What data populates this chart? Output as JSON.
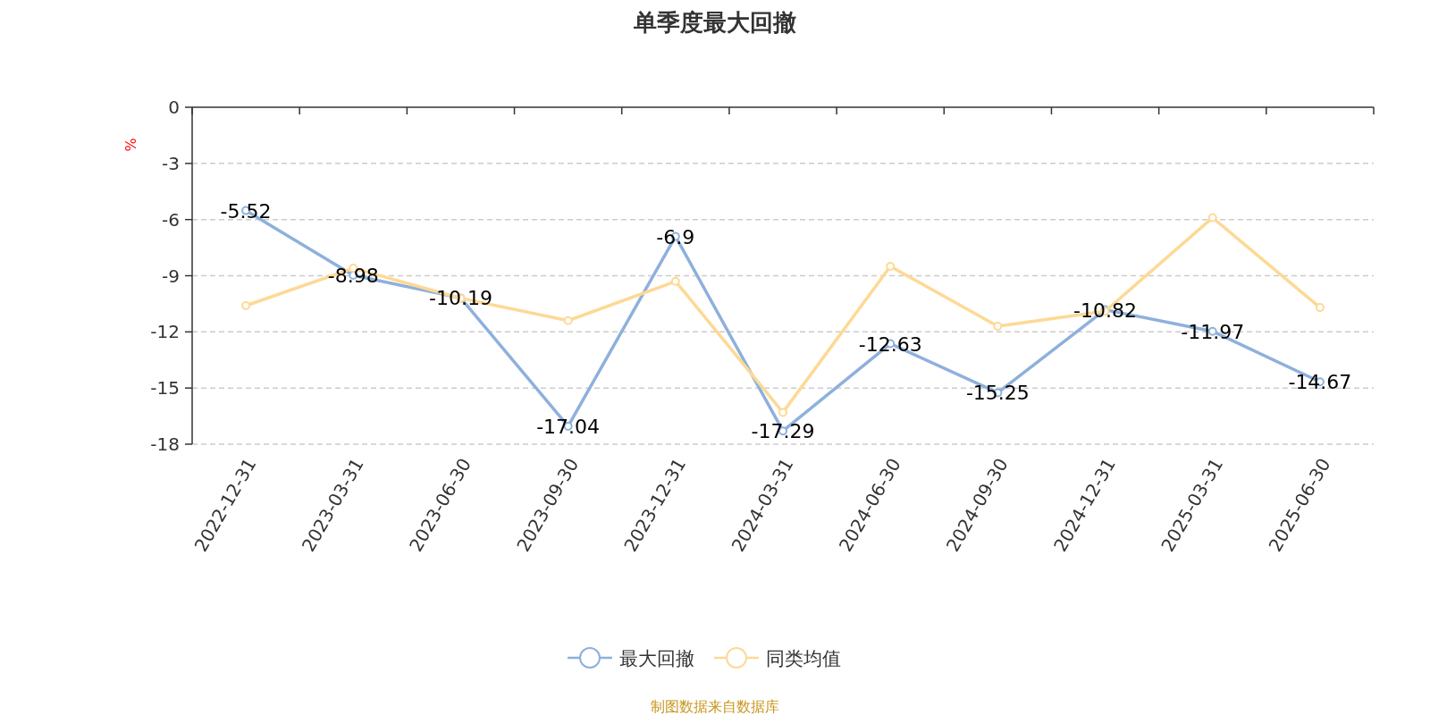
{
  "chart_data": {
    "type": "line",
    "title": "单季度最大回撤",
    "ylabel": "%",
    "categories": [
      "2022-12-31",
      "2023-03-31",
      "2023-06-30",
      "2023-09-30",
      "2023-12-31",
      "2024-03-31",
      "2024-06-30",
      "2024-09-30",
      "2024-12-31",
      "2025-03-31",
      "2025-06-30"
    ],
    "series": [
      {
        "name": "最大回撤",
        "color": "#8eb0dc",
        "values": [
          -5.52,
          -8.98,
          -10.19,
          -17.04,
          -6.9,
          -17.29,
          -12.63,
          -15.25,
          -10.82,
          -11.97,
          -14.67
        ],
        "value_labels": [
          "-5.52",
          "-8.98",
          "-10.19",
          "-17.04",
          "-6.9",
          "-17.29",
          "-12.63",
          "-15.25",
          "-10.82",
          "-11.97",
          "-14.67"
        ]
      },
      {
        "name": "同类均值",
        "color": "#fdd995",
        "values": [
          -10.6,
          -8.6,
          -10.2,
          -11.4,
          -9.3,
          -16.3,
          -8.5,
          -11.7,
          -10.9,
          -5.9,
          -10.7
        ]
      }
    ],
    "ylim": [
      -18,
      0
    ],
    "yticks": [
      0,
      -3,
      -6,
      -9,
      -12,
      -15,
      -18
    ],
    "grid": "y",
    "legend": "bottom",
    "marker": "circle",
    "line_style": "solid",
    "annotations": [
      "制图数据来自数据库"
    ]
  }
}
